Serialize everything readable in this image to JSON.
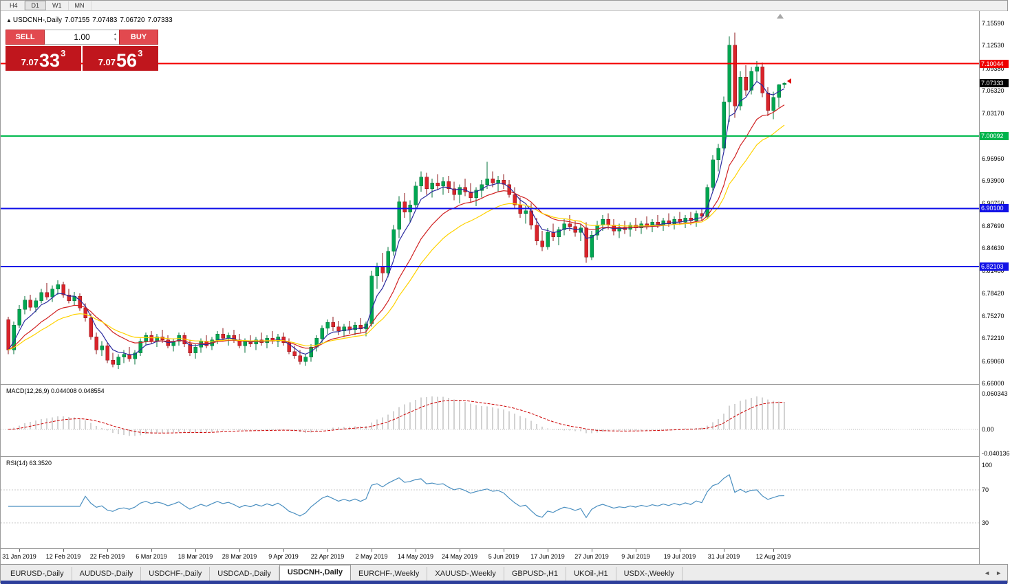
{
  "timeframe_toolbar": {
    "buttons": [
      "H4",
      "D1",
      "W1",
      "MN"
    ],
    "active": "D1"
  },
  "chart_header": {
    "collapse_icon": "▲",
    "title": "USDCNH-,Daily",
    "open": "7.07155",
    "high": "7.07483",
    "low": "7.06720",
    "close": "7.07333"
  },
  "trade_panel": {
    "sell_label": "SELL",
    "buy_label": "BUY",
    "volume": "1.00",
    "spin_up": "▲",
    "spin_down": "▼",
    "bid": {
      "prefix": "7.07",
      "pips": "33",
      "point": "3"
    },
    "ask": {
      "prefix": "7.07",
      "pips": "56",
      "point": "3"
    }
  },
  "price_axis": {
    "ticks": [
      "7.15590",
      "7.12530",
      "7.09380",
      "7.06320",
      "7.03170",
      "6.96960",
      "6.93900",
      "6.90750",
      "6.87690",
      "6.84630",
      "6.81480",
      "6.78420",
      "6.75270",
      "6.72210",
      "6.69060",
      "6.66000"
    ],
    "badges": [
      {
        "label": "7.10044",
        "value": 7.10044,
        "color": "#ee0000",
        "type": "resistance-line"
      },
      {
        "label": "7.07333",
        "value": 7.07333,
        "color": "#000000",
        "type": "last-price"
      },
      {
        "label": "7.00092",
        "value": 7.00092,
        "color": "#00b44c",
        "type": "support-line"
      },
      {
        "label": "6.90100",
        "value": 6.901,
        "color": "#1212e6",
        "type": "support-line"
      },
      {
        "label": "6.82103",
        "value": 6.82103,
        "color": "#1212e6",
        "type": "support-line"
      }
    ]
  },
  "macd_panel": {
    "label": "MACD(12,26,9) 0.044008 0.048554",
    "axis_ticks": [
      {
        "label": "0.060343",
        "value": 0.060343
      },
      {
        "label": "0.00",
        "value": 0
      },
      {
        "label": "-0.040136",
        "value": -0.040136
      }
    ]
  },
  "rsi_panel": {
    "label": "RSI(14) 63.3520",
    "axis_ticks": [
      {
        "label": "100",
        "value": 100
      },
      {
        "label": "70",
        "value": 70
      },
      {
        "label": "30",
        "value": 30
      }
    ],
    "levels": [
      70,
      30
    ]
  },
  "date_axis": [
    {
      "label": "31 Jan 2019",
      "index": 2
    },
    {
      "label": "12 Feb 2019",
      "index": 10
    },
    {
      "label": "22 Feb 2019",
      "index": 18
    },
    {
      "label": "6 Mar 2019",
      "index": 26
    },
    {
      "label": "18 Mar 2019",
      "index": 34
    },
    {
      "label": "28 Mar 2019",
      "index": 42
    },
    {
      "label": "9 Apr 2019",
      "index": 50
    },
    {
      "label": "22 Apr 2019",
      "index": 58
    },
    {
      "label": "2 May 2019",
      "index": 66
    },
    {
      "label": "14 May 2019",
      "index": 74
    },
    {
      "label": "24 May 2019",
      "index": 82
    },
    {
      "label": "5 Jun 2019",
      "index": 90
    },
    {
      "label": "17 Jun 2019",
      "index": 98
    },
    {
      "label": "27 Jun 2019",
      "index": 106
    },
    {
      "label": "9 Jul 2019",
      "index": 114
    },
    {
      "label": "19 Jul 2019",
      "index": 122
    },
    {
      "label": "31 Jul 2019",
      "index": 130
    },
    {
      "label": "12 Aug 2019",
      "index": 139
    }
  ],
  "tab_bar": {
    "scroll_left": "◄",
    "scroll_right": "►",
    "tabs": [
      {
        "label": "EURUSD-,Daily",
        "active": false
      },
      {
        "label": "AUDUSD-,Daily",
        "active": false
      },
      {
        "label": "USDCHF-,Daily",
        "active": false
      },
      {
        "label": "USDCAD-,Daily",
        "active": false
      },
      {
        "label": "USDCNH-,Daily",
        "active": true
      },
      {
        "label": "EURCHF-,Weekly",
        "active": false
      },
      {
        "label": "XAUUSD-,Weekly",
        "active": false
      },
      {
        "label": "GBPUSD-,H1",
        "active": false
      },
      {
        "label": "UKOil-,H1",
        "active": false
      },
      {
        "label": "USDX-,Weekly",
        "active": false
      }
    ]
  },
  "chart_data": {
    "type": "candlestick",
    "symbol": "USDCNH",
    "timeframe": "Daily",
    "y_range": [
      6.659,
      7.173
    ],
    "colors": {
      "up": "#00a651",
      "up_border": "#00713a",
      "down": "#d9242b",
      "down_border": "#8e1418"
    },
    "hlines": [
      {
        "name": "resistance-line-7.10044",
        "value": 7.10044,
        "color": "#f40000"
      },
      {
        "name": "support-line-7.00092",
        "value": 7.00092,
        "color": "#00b94e"
      },
      {
        "name": "support-line-6.90100",
        "value": 6.901,
        "color": "#0f0fe8"
      },
      {
        "name": "support-line-6.82103",
        "value": 6.82103,
        "color": "#0f0fe8"
      }
    ],
    "overlays": [
      {
        "name": "ma-fast-blue",
        "period": 5,
        "color": "#2a2a9e"
      },
      {
        "name": "ma-mid-red",
        "period": 13,
        "color": "#d02020"
      },
      {
        "name": "ma-slow-yellow",
        "period": 21,
        "color": "#ffd200"
      }
    ],
    "macd": {
      "fast": 12,
      "slow": 26,
      "signal": 9,
      "range": [
        -0.0452,
        0.0754
      ],
      "current": "0.044008",
      "current_signal": "0.048554"
    },
    "rsi": {
      "period": 14,
      "current": "63.3520"
    },
    "candles": [
      [
        6.748,
        6.752,
        6.7,
        6.706
      ],
      [
        6.706,
        6.745,
        6.7,
        6.74
      ],
      [
        6.74,
        6.768,
        6.736,
        6.762
      ],
      [
        6.762,
        6.78,
        6.755,
        6.775
      ],
      [
        6.775,
        6.782,
        6.76,
        6.765
      ],
      [
        6.765,
        6.778,
        6.758,
        6.774
      ],
      [
        6.774,
        6.79,
        6.77,
        6.785
      ],
      [
        6.785,
        6.798,
        6.775,
        6.779
      ],
      [
        6.779,
        6.795,
        6.772,
        6.79
      ],
      [
        6.79,
        6.802,
        6.782,
        6.796
      ],
      [
        6.796,
        6.8,
        6.778,
        6.782
      ],
      [
        6.782,
        6.79,
        6.77,
        6.774
      ],
      [
        6.774,
        6.786,
        6.768,
        6.78
      ],
      [
        6.78,
        6.784,
        6.76,
        6.764
      ],
      [
        6.764,
        6.77,
        6.745,
        6.75
      ],
      [
        6.75,
        6.756,
        6.72,
        6.724
      ],
      [
        6.724,
        6.73,
        6.7,
        6.706
      ],
      [
        6.706,
        6.718,
        6.698,
        6.712
      ],
      [
        6.712,
        6.716,
        6.688,
        6.692
      ],
      [
        6.692,
        6.702,
        6.682,
        6.686
      ],
      [
        6.686,
        6.7,
        6.68,
        6.696
      ],
      [
        6.696,
        6.706,
        6.688,
        6.7
      ],
      [
        6.7,
        6.71,
        6.69,
        6.694
      ],
      [
        6.694,
        6.706,
        6.686,
        6.702
      ],
      [
        6.702,
        6.722,
        6.698,
        6.718
      ],
      [
        6.718,
        6.73,
        6.712,
        6.726
      ],
      [
        6.726,
        6.732,
        6.714,
        6.718
      ],
      [
        6.718,
        6.728,
        6.71,
        6.724
      ],
      [
        6.724,
        6.734,
        6.716,
        6.72
      ],
      [
        6.72,
        6.726,
        6.708,
        6.712
      ],
      [
        6.712,
        6.722,
        6.704,
        6.718
      ],
      [
        6.718,
        6.73,
        6.712,
        6.726
      ],
      [
        6.726,
        6.73,
        6.71,
        6.714
      ],
      [
        6.714,
        6.72,
        6.698,
        6.702
      ],
      [
        6.702,
        6.714,
        6.694,
        6.71
      ],
      [
        6.71,
        6.722,
        6.702,
        6.718
      ],
      [
        6.718,
        6.726,
        6.708,
        6.712
      ],
      [
        6.712,
        6.724,
        6.706,
        6.72
      ],
      [
        6.72,
        6.732,
        6.714,
        6.728
      ],
      [
        6.728,
        6.736,
        6.718,
        6.722
      ],
      [
        6.722,
        6.73,
        6.712,
        6.726
      ],
      [
        6.726,
        6.734,
        6.716,
        6.72
      ],
      [
        6.72,
        6.728,
        6.708,
        6.712
      ],
      [
        6.712,
        6.722,
        6.702,
        6.718
      ],
      [
        6.718,
        6.726,
        6.71,
        6.714
      ],
      [
        6.714,
        6.724,
        6.706,
        6.72
      ],
      [
        6.72,
        6.73,
        6.712,
        6.716
      ],
      [
        6.716,
        6.726,
        6.708,
        6.722
      ],
      [
        6.722,
        6.732,
        6.714,
        6.718
      ],
      [
        6.718,
        6.728,
        6.71,
        6.724
      ],
      [
        6.724,
        6.73,
        6.712,
        6.716
      ],
      [
        6.716,
        6.722,
        6.7,
        6.704
      ],
      [
        6.704,
        6.712,
        6.694,
        6.698
      ],
      [
        6.698,
        6.706,
        6.686,
        6.69
      ],
      [
        6.69,
        6.7,
        6.684,
        6.696
      ],
      [
        6.696,
        6.714,
        6.69,
        6.71
      ],
      [
        6.71,
        6.726,
        6.704,
        6.722
      ],
      [
        6.722,
        6.74,
        6.716,
        6.736
      ],
      [
        6.736,
        6.748,
        6.728,
        6.744
      ],
      [
        6.744,
        6.752,
        6.732,
        6.738
      ],
      [
        6.738,
        6.746,
        6.726,
        6.732
      ],
      [
        6.732,
        6.742,
        6.724,
        6.738
      ],
      [
        6.738,
        6.746,
        6.728,
        6.734
      ],
      [
        6.734,
        6.744,
        6.726,
        6.74
      ],
      [
        6.74,
        6.75,
        6.73,
        6.735
      ],
      [
        6.735,
        6.745,
        6.725,
        6.742
      ],
      [
        6.742,
        6.815,
        6.738,
        6.808
      ],
      [
        6.808,
        6.826,
        6.79,
        6.82
      ],
      [
        6.82,
        6.84,
        6.8,
        6.812
      ],
      [
        6.812,
        6.848,
        6.806,
        6.842
      ],
      [
        6.842,
        6.878,
        6.836,
        6.872
      ],
      [
        6.872,
        6.918,
        6.86,
        6.91
      ],
      [
        6.91,
        6.922,
        6.888,
        6.896
      ],
      [
        6.896,
        6.912,
        6.882,
        6.906
      ],
      [
        6.906,
        6.938,
        6.9,
        6.932
      ],
      [
        6.932,
        6.952,
        6.924,
        6.944
      ],
      [
        6.944,
        6.95,
        6.92,
        6.928
      ],
      [
        6.928,
        6.942,
        6.916,
        6.936
      ],
      [
        6.936,
        6.948,
        6.926,
        6.932
      ],
      [
        6.932,
        6.944,
        6.92,
        6.938
      ],
      [
        6.938,
        6.946,
        6.922,
        6.928
      ],
      [
        6.928,
        6.938,
        6.912,
        6.92
      ],
      [
        6.92,
        6.934,
        6.908,
        6.93
      ],
      [
        6.93,
        6.942,
        6.918,
        6.924
      ],
      [
        6.924,
        6.936,
        6.91,
        6.916
      ],
      [
        6.916,
        6.93,
        6.904,
        6.926
      ],
      [
        6.926,
        6.94,
        6.916,
        6.934
      ],
      [
        6.934,
        6.965,
        6.928,
        6.942
      ],
      [
        6.942,
        6.952,
        6.93,
        6.936
      ],
      [
        6.936,
        6.946,
        6.924,
        6.94
      ],
      [
        6.94,
        6.948,
        6.928,
        6.934
      ],
      [
        6.934,
        6.94,
        6.916,
        6.92
      ],
      [
        6.92,
        6.93,
        6.9,
        6.906
      ],
      [
        6.906,
        6.916,
        6.888,
        6.894
      ],
      [
        6.894,
        6.904,
        6.88,
        6.898
      ],
      [
        6.898,
        6.908,
        6.872,
        6.878
      ],
      [
        6.878,
        6.888,
        6.85,
        6.856
      ],
      [
        6.856,
        6.87,
        6.842,
        6.848
      ],
      [
        6.848,
        6.874,
        6.844,
        6.868
      ],
      [
        6.868,
        6.88,
        6.856,
        6.862
      ],
      [
        6.862,
        6.876,
        6.85,
        6.872
      ],
      [
        6.872,
        6.886,
        6.864,
        6.88
      ],
      [
        6.88,
        6.892,
        6.87,
        6.876
      ],
      [
        6.876,
        6.884,
        6.862,
        6.868
      ],
      [
        6.868,
        6.88,
        6.856,
        6.874
      ],
      [
        6.874,
        6.882,
        6.826,
        6.834
      ],
      [
        6.834,
        6.87,
        6.83,
        6.864
      ],
      [
        6.864,
        6.884,
        6.858,
        6.878
      ],
      [
        6.878,
        6.892,
        6.87,
        6.886
      ],
      [
        6.886,
        6.894,
        6.872,
        6.878
      ],
      [
        6.878,
        6.886,
        6.864,
        6.87
      ],
      [
        6.87,
        6.88,
        6.86,
        6.875
      ],
      [
        6.875,
        6.884,
        6.866,
        6.872
      ],
      [
        6.872,
        6.882,
        6.862,
        6.878
      ],
      [
        6.878,
        6.888,
        6.87,
        6.874
      ],
      [
        6.874,
        6.884,
        6.866,
        6.88
      ],
      [
        6.88,
        6.89,
        6.872,
        6.876
      ],
      [
        6.876,
        6.886,
        6.868,
        6.882
      ],
      [
        6.882,
        6.892,
        6.874,
        6.878
      ],
      [
        6.878,
        6.888,
        6.87,
        6.884
      ],
      [
        6.884,
        6.894,
        6.876,
        6.88
      ],
      [
        6.88,
        6.89,
        6.872,
        6.886
      ],
      [
        6.886,
        6.896,
        6.878,
        6.882
      ],
      [
        6.882,
        6.892,
        6.874,
        6.888
      ],
      [
        6.888,
        6.896,
        6.878,
        6.884
      ],
      [
        6.884,
        6.898,
        6.876,
        6.894
      ],
      [
        6.894,
        6.902,
        6.884,
        6.89
      ],
      [
        6.89,
        6.934,
        6.886,
        6.93
      ],
      [
        6.93,
        6.974,
        6.924,
        6.968
      ],
      [
        6.968,
        6.99,
        6.952,
        6.984
      ],
      [
        6.984,
        7.055,
        6.978,
        7.048
      ],
      [
        7.048,
        7.138,
        7.02,
        7.126
      ],
      [
        7.126,
        7.143,
        7.026,
        7.042
      ],
      [
        7.042,
        7.09,
        7.036,
        7.082
      ],
      [
        7.082,
        7.098,
        7.056,
        7.064
      ],
      [
        7.064,
        7.096,
        7.058,
        7.09
      ],
      [
        7.09,
        7.104,
        7.076,
        7.096
      ],
      [
        7.096,
        7.102,
        7.054,
        7.06
      ],
      [
        7.06,
        7.068,
        7.028,
        7.036
      ],
      [
        7.036,
        7.062,
        7.024,
        7.054
      ],
      [
        7.054,
        7.072,
        7.04,
        7.0716
      ],
      [
        7.07155,
        7.07483,
        7.0672,
        7.07333
      ]
    ]
  }
}
